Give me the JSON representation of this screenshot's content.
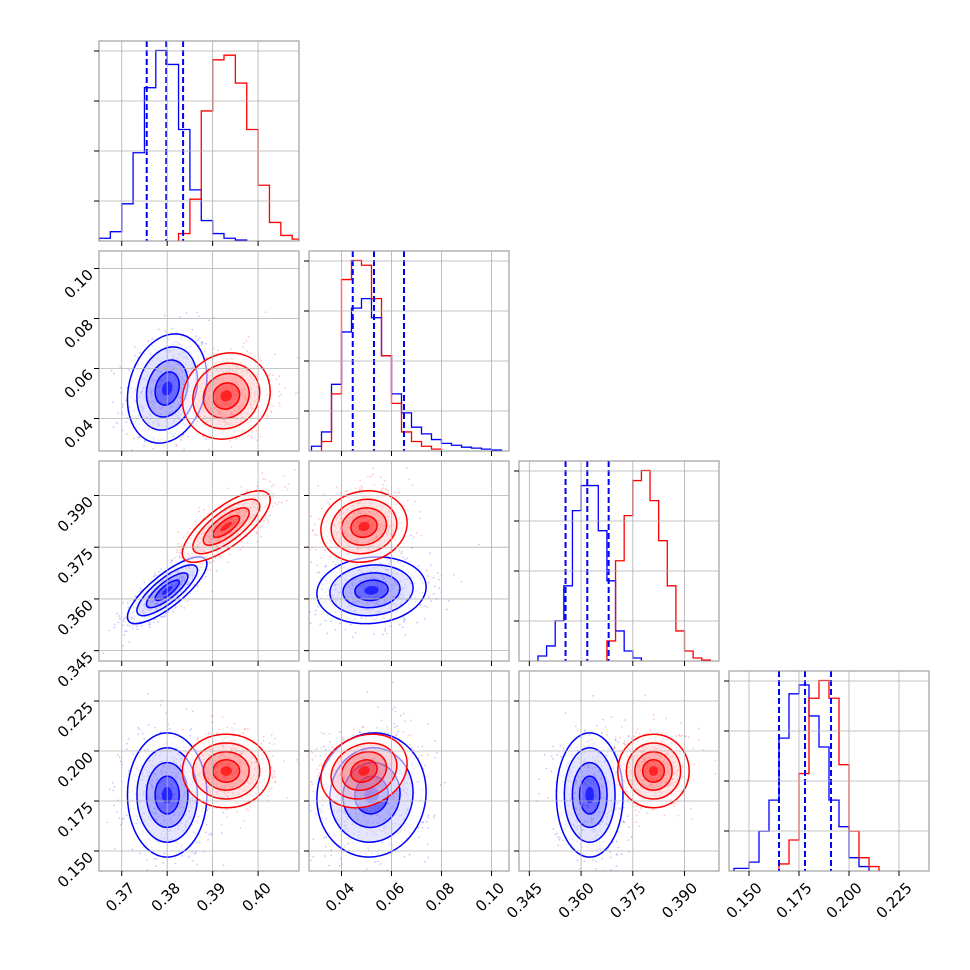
{
  "chart_data": {
    "type": "corner",
    "parameters": 4,
    "grid": true,
    "colors": {
      "series_blue": "#0000ff",
      "series_red": "#ff0000"
    },
    "series": [
      {
        "color": "#0000ff",
        "means": [
          0.38,
          0.052,
          0.3625,
          0.178
        ],
        "sigmas": [
          0.0038,
          0.0095,
          0.0042,
          0.0135
        ],
        "correlations": [
          [
            1,
            0.2,
            0.8,
            0
          ],
          [
            0.2,
            1,
            0.1,
            0.05
          ],
          [
            0.8,
            0.1,
            1,
            0
          ],
          [
            0,
            0.05,
            0,
            1
          ]
        ],
        "quantiles": [
          [
            0.3755,
            0.3798,
            0.3835
          ],
          [
            0.0445,
            0.053,
            0.065
          ],
          [
            0.3555,
            0.3618,
            0.368
          ],
          [
            0.165,
            0.178,
            0.191
          ]
        ],
        "histograms": [
          {
            "edges": [
              0.365,
              0.3675,
              0.37,
              0.3725,
              0.375,
              0.3775,
              0.38,
              0.3825,
              0.385,
              0.3875,
              0.39,
              0.3925,
              0.395,
              0.3975
            ],
            "counts": [
              3,
              10,
              40,
              95,
              165,
              205,
              190,
              120,
              55,
              22,
              8,
              3,
              1
            ]
          },
          {
            "edges": [
              0.028,
              0.032,
              0.036,
              0.04,
              0.044,
              0.048,
              0.052,
              0.056,
              0.06,
              0.064,
              0.068,
              0.072,
              0.076,
              0.08,
              0.084,
              0.088,
              0.092,
              0.096,
              0.1,
              0.104
            ],
            "counts": [
              5,
              20,
              70,
              125,
              150,
              160,
              140,
              100,
              60,
              40,
              25,
              18,
              12,
              8,
              6,
              4,
              3,
              2,
              1
            ]
          },
          {
            "edges": [
              0.3475,
              0.35,
              0.3525,
              0.355,
              0.3575,
              0.36,
              0.3625,
              0.365,
              0.3675,
              0.37,
              0.3725,
              0.375,
              0.3775
            ],
            "counts": [
              5,
              15,
              40,
              75,
              150,
              175,
              175,
              130,
              80,
              30,
              10,
              3
            ]
          },
          {
            "edges": [
              0.1425,
              0.15,
              0.155,
              0.16,
              0.165,
              0.17,
              0.175,
              0.18,
              0.185,
              0.19,
              0.195,
              0.2,
              0.205,
              0.21
            ],
            "counts": [
              3,
              10,
              45,
              80,
              150,
              200,
              210,
              175,
              140,
              80,
              50,
              15,
              5
            ]
          }
        ]
      },
      {
        "color": "#ff0000",
        "means": [
          0.393,
          0.049,
          0.381,
          0.19
        ],
        "sigmas": [
          0.0042,
          0.0075,
          0.0045,
          0.008
        ],
        "correlations": [
          [
            1,
            0.1,
            0.75,
            0
          ],
          [
            0.1,
            1,
            0.1,
            0.2
          ],
          [
            0.75,
            0.1,
            1,
            0
          ],
          [
            0,
            0.2,
            0,
            1
          ]
        ],
        "histograms": [
          {
            "edges": [
              0.3825,
              0.385,
              0.3875,
              0.39,
              0.3925,
              0.395,
              0.3975,
              0.4,
              0.4025,
              0.405,
              0.4075,
              0.41
            ],
            "counts": [
              8,
              45,
              140,
              195,
              200,
              170,
              120,
              60,
              20,
              6,
              2
            ]
          },
          {
            "edges": [
              0.032,
              0.036,
              0.04,
              0.044,
              0.048,
              0.052,
              0.056,
              0.06,
              0.064,
              0.068,
              0.072,
              0.076,
              0.08
            ],
            "counts": [
              10,
              60,
              180,
              200,
              195,
              160,
              100,
              50,
              20,
              10,
              5,
              2
            ]
          },
          {
            "edges": [
              0.3675,
              0.37,
              0.3725,
              0.375,
              0.3775,
              0.38,
              0.3825,
              0.385,
              0.3875,
              0.39,
              0.3925,
              0.395,
              0.3975
            ],
            "counts": [
              20,
              100,
              145,
              180,
              190,
              160,
              120,
              75,
              30,
              10,
              3,
              1
            ]
          },
          {
            "edges": [
              0.165,
              0.17,
              0.175,
              0.18,
              0.185,
              0.19,
              0.195,
              0.2,
              0.205,
              0.21,
              0.215
            ],
            "counts": [
              8,
              35,
              110,
              195,
              215,
              195,
              120,
              45,
              15,
              5
            ]
          }
        ]
      }
    ],
    "axes": [
      {
        "range": [
          0.365,
          0.409
        ],
        "ticks": [
          0.37,
          0.38,
          0.39,
          0.4
        ],
        "tick_labels": [
          "0.37",
          "0.38",
          "0.39",
          "0.40"
        ]
      },
      {
        "range": [
          0.027,
          0.107
        ],
        "ticks": [
          0.04,
          0.06,
          0.08,
          0.1
        ],
        "tick_labels": [
          "0.04",
          "0.06",
          "0.08",
          "0.10"
        ]
      },
      {
        "range": [
          0.342,
          0.4
        ],
        "ticks": [
          0.345,
          0.36,
          0.375,
          0.39
        ],
        "tick_labels": [
          "0.345",
          "0.360",
          "0.375",
          "0.390"
        ]
      },
      {
        "range": [
          0.14,
          0.24
        ],
        "ticks": [
          0.15,
          0.175,
          0.2,
          0.225
        ],
        "tick_labels": [
          "0.150",
          "0.175",
          "0.200",
          "0.225"
        ]
      }
    ]
  }
}
